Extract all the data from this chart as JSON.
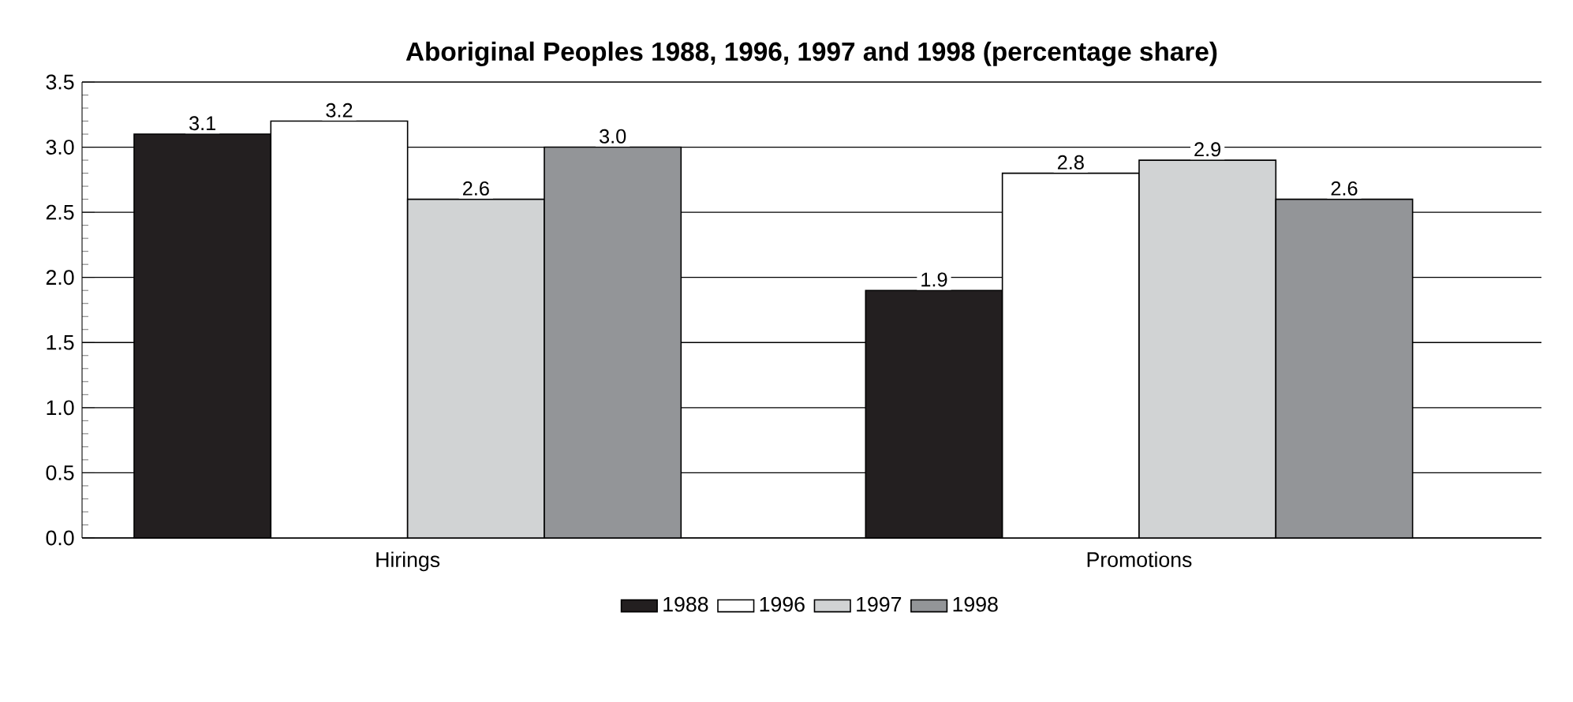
{
  "chart_data": {
    "type": "bar",
    "title": "Aboriginal Peoples 1988, 1996, 1997 and 1998 (percentage share)",
    "categories": [
      "Hirings",
      "Promotions"
    ],
    "series": [
      {
        "name": "1988",
        "color": "#231f20",
        "values": [
          3.1,
          1.9
        ],
        "value_labels": [
          "3.1",
          "1.9"
        ]
      },
      {
        "name": "1996",
        "color": "#ffffff",
        "values": [
          3.2,
          2.8
        ],
        "value_labels": [
          "3.2",
          "2.8"
        ]
      },
      {
        "name": "1997",
        "color": "#d1d3d4",
        "values": [
          2.6,
          2.9
        ],
        "value_labels": [
          "2.6",
          "2.9"
        ]
      },
      {
        "name": "1998",
        "color": "#939598",
        "values": [
          3.0,
          2.6
        ],
        "value_labels": [
          "3.0",
          "2.6"
        ]
      }
    ],
    "ylim": [
      0,
      3.5
    ],
    "yticks": [
      {
        "value": 0,
        "label": "0.0"
      },
      0.5,
      {
        "value": 1,
        "label": "1.0"
      },
      1.5,
      {
        "value": 2,
        "label": "2.0"
      },
      2.5,
      {
        "value": 3,
        "label": "3.0"
      },
      3.5
    ],
    "grid": "y",
    "legend": "bottom"
  }
}
